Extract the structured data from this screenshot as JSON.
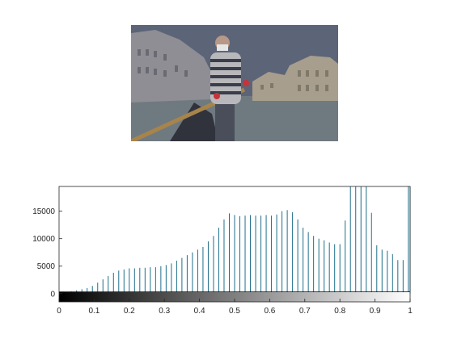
{
  "photo": {
    "description_icon": "gondolier-venice-photo",
    "palette": {
      "sky": "#5c6478",
      "water": "#6f7a80",
      "buildings_left": "#8e8e94",
      "buildings_right": "#a89e8e",
      "shirt_dark": "#3a3e4a",
      "shirt_light": "#b8b8bc",
      "gloves": "#c8323a",
      "oar": "#a8844a",
      "gondola": "#30323c"
    }
  },
  "chart_data": {
    "type": "bar",
    "title": "",
    "xlabel": "",
    "ylabel": "",
    "xlim": [
      0,
      1
    ],
    "ylim": [
      -1500,
      19500
    ],
    "xticks": [
      "0",
      "0.1",
      "0.2",
      "0.3",
      "0.4",
      "0.5",
      "0.6",
      "0.7",
      "0.8",
      "0.9",
      "1"
    ],
    "yticks": [
      "0",
      "5000",
      "10000",
      "15000"
    ],
    "bar_color": "#1f6f8b",
    "colorbar": "grayscale",
    "x": [
      0.02,
      0.035,
      0.05,
      0.065,
      0.08,
      0.095,
      0.11,
      0.125,
      0.14,
      0.155,
      0.17,
      0.185,
      0.2,
      0.215,
      0.23,
      0.245,
      0.26,
      0.275,
      0.29,
      0.305,
      0.32,
      0.335,
      0.35,
      0.365,
      0.38,
      0.395,
      0.41,
      0.425,
      0.44,
      0.455,
      0.47,
      0.485,
      0.5,
      0.515,
      0.53,
      0.545,
      0.56,
      0.575,
      0.59,
      0.605,
      0.62,
      0.635,
      0.65,
      0.665,
      0.68,
      0.695,
      0.71,
      0.725,
      0.74,
      0.755,
      0.77,
      0.785,
      0.8,
      0.815,
      0.83,
      0.845,
      0.86,
      0.875,
      0.89,
      0.905,
      0.92,
      0.935,
      0.95,
      0.965,
      0.98,
      0.995,
      1.0
    ],
    "values": [
      200,
      400,
      600,
      800,
      1000,
      1400,
      2000,
      2600,
      3200,
      3800,
      4200,
      4400,
      4600,
      4600,
      4700,
      4700,
      4800,
      4800,
      5000,
      5200,
      5500,
      6000,
      6500,
      7000,
      7500,
      8000,
      8500,
      9500,
      10500,
      12000,
      13500,
      14600,
      14300,
      14100,
      14200,
      14300,
      14200,
      14200,
      14300,
      14200,
      14400,
      15000,
      15200,
      14800,
      13500,
      12000,
      11200,
      10500,
      10000,
      9700,
      9300,
      9000,
      9000,
      13300,
      19500,
      19500,
      19500,
      19500,
      14700,
      8800,
      8000,
      7800,
      7200,
      6100,
      6100,
      19500,
      19500
    ]
  }
}
